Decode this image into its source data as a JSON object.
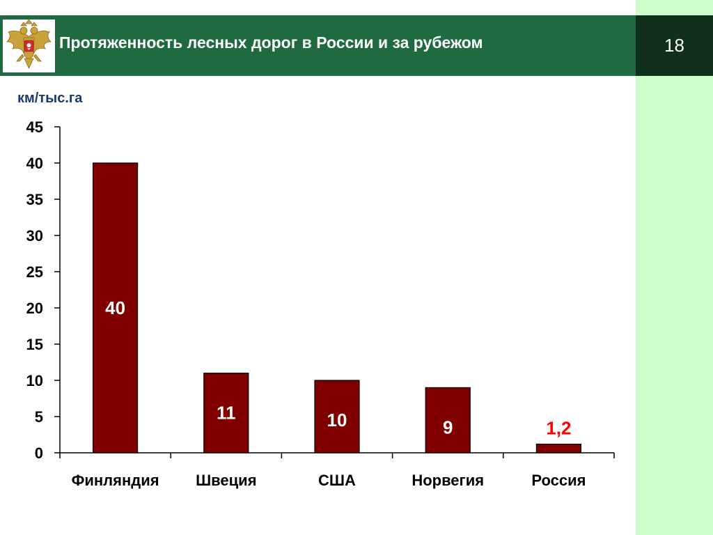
{
  "header": {
    "title": "Протяженность лесных дорог в России и за рубежом",
    "slide_number": "18",
    "emblem_icon": "russian-coat-of-arms"
  },
  "colors": {
    "header_green": "#1f6a41",
    "number_box": "#10301c",
    "side_strip": "#ccffcc",
    "bar_fill": "#800000",
    "highlight_label": "#ff0000",
    "unit_label": "#1a3a6e"
  },
  "chart_data": {
    "type": "bar",
    "title": "",
    "ylabel": "км/тыс.га",
    "xlabel": "",
    "categories": [
      "Финляндия",
      "Швеция",
      "США",
      "Норвегия",
      "Россия"
    ],
    "values": [
      40,
      11,
      10,
      9,
      1.2
    ],
    "data_labels": [
      "40",
      "11",
      "10",
      "9",
      "1,2"
    ],
    "highlight_index": 4,
    "ylim": [
      0,
      45
    ],
    "yticks": [
      0,
      5,
      10,
      15,
      20,
      25,
      30,
      35,
      40,
      45
    ],
    "grid": false,
    "legend": "none"
  }
}
